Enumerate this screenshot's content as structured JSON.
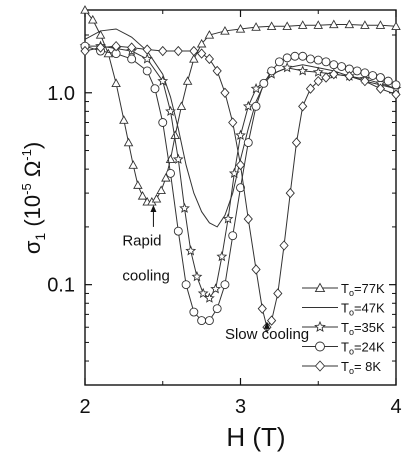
{
  "chart_data": {
    "type": "line",
    "xlabel": "H (T)",
    "ylabel": "σ1 (10-5 Ω-1)",
    "ylabel_parts": {
      "main": "σ",
      "sub": "1",
      "open": " (10",
      "sup1": "-5",
      "mid": " Ω",
      "sup2": "-1",
      "close": ")"
    },
    "xlim": [
      2,
      4
    ],
    "ylim": [
      0.03,
      2.7
    ],
    "yscale": "log",
    "x_ticks": [
      2,
      3,
      4
    ],
    "x_tick_labels": [
      "2",
      "3",
      "4"
    ],
    "y_ticks": [
      0.1,
      1.0
    ],
    "y_tick_labels": [
      "0.1",
      "1.0"
    ],
    "grid": false,
    "legend_position": "bottom-right",
    "series": [
      {
        "name": "To=77K",
        "label_parts": {
          "main": "T",
          "sub": "o",
          "rest": "=77K"
        },
        "marker": "triangle",
        "x": [
          2.0,
          2.05,
          2.1,
          2.15,
          2.2,
          2.25,
          2.28,
          2.31,
          2.34,
          2.37,
          2.4,
          2.43,
          2.46,
          2.49,
          2.52,
          2.55,
          2.58,
          2.62,
          2.66,
          2.7,
          2.75,
          2.8,
          2.9,
          3.0,
          3.1,
          3.2,
          3.3,
          3.4,
          3.5,
          3.6,
          3.7,
          3.8,
          3.9,
          4.0
        ],
        "y": [
          2.7,
          2.4,
          2.0,
          1.6,
          1.12,
          0.72,
          0.55,
          0.42,
          0.33,
          0.29,
          0.27,
          0.27,
          0.28,
          0.31,
          0.36,
          0.45,
          0.6,
          0.85,
          1.15,
          1.5,
          1.8,
          2.0,
          2.1,
          2.15,
          2.2,
          2.22,
          2.22,
          2.25,
          2.25,
          2.27,
          2.27,
          2.25,
          2.25,
          2.22
        ]
      },
      {
        "name": "To=47K",
        "label_parts": {
          "main": "T",
          "sub": "o",
          "rest": "=47K"
        },
        "marker": "none",
        "x": [
          2.0,
          2.1,
          2.2,
          2.3,
          2.4,
          2.5,
          2.55,
          2.6,
          2.65,
          2.7,
          2.75,
          2.8,
          2.85,
          2.9,
          2.95,
          3.0,
          3.05,
          3.1,
          3.15,
          3.2,
          3.3,
          3.4,
          3.5,
          3.6,
          3.7,
          3.8,
          3.9,
          4.0
        ],
        "y": [
          1.9,
          2.1,
          2.15,
          1.95,
          1.65,
          1.25,
          0.95,
          0.65,
          0.42,
          0.3,
          0.24,
          0.21,
          0.2,
          0.23,
          0.3,
          0.45,
          0.65,
          0.9,
          1.1,
          1.25,
          1.35,
          1.4,
          1.35,
          1.3,
          1.22,
          1.15,
          1.1,
          1.05
        ]
      },
      {
        "name": "To=35K",
        "label_parts": {
          "main": "T",
          "sub": "o",
          "rest": "=35K"
        },
        "marker": "star",
        "x": [
          2.0,
          2.1,
          2.2,
          2.3,
          2.4,
          2.5,
          2.55,
          2.6,
          2.64,
          2.68,
          2.72,
          2.76,
          2.8,
          2.84,
          2.88,
          2.92,
          2.96,
          3.0,
          3.05,
          3.1,
          3.2,
          3.3,
          3.4,
          3.5,
          3.6,
          3.7,
          3.8,
          3.9,
          4.0
        ],
        "y": [
          1.75,
          1.75,
          1.7,
          1.65,
          1.5,
          1.15,
          0.8,
          0.45,
          0.25,
          0.15,
          0.11,
          0.09,
          0.085,
          0.095,
          0.14,
          0.22,
          0.38,
          0.6,
          0.85,
          1.05,
          1.25,
          1.35,
          1.3,
          1.28,
          1.25,
          1.22,
          1.18,
          1.12,
          1.05
        ]
      },
      {
        "name": "To=24K",
        "label_parts": {
          "main": "T",
          "sub": "o",
          "rest": "=24K"
        },
        "marker": "circle",
        "x": [
          2.0,
          2.1,
          2.2,
          2.3,
          2.4,
          2.45,
          2.5,
          2.55,
          2.6,
          2.65,
          2.7,
          2.75,
          2.8,
          2.85,
          2.9,
          2.95,
          3.0,
          3.05,
          3.1,
          3.15,
          3.2,
          3.25,
          3.3,
          3.35,
          3.4,
          3.45,
          3.5,
          3.55,
          3.6,
          3.65,
          3.7,
          3.75,
          3.8,
          3.85,
          3.9,
          3.95,
          4.0
        ],
        "y": [
          1.75,
          1.65,
          1.6,
          1.5,
          1.3,
          1.05,
          0.7,
          0.38,
          0.19,
          0.1,
          0.072,
          0.065,
          0.065,
          0.075,
          0.1,
          0.18,
          0.32,
          0.55,
          0.85,
          1.12,
          1.3,
          1.45,
          1.52,
          1.55,
          1.55,
          1.5,
          1.48,
          1.45,
          1.4,
          1.37,
          1.33,
          1.3,
          1.27,
          1.23,
          1.2,
          1.15,
          1.1
        ]
      },
      {
        "name": "To= 8K",
        "label_parts": {
          "main": "T",
          "sub": "o",
          "rest": "= 8K"
        },
        "marker": "diamond",
        "x": [
          2.0,
          2.1,
          2.2,
          2.3,
          2.4,
          2.5,
          2.6,
          2.7,
          2.75,
          2.8,
          2.85,
          2.9,
          2.95,
          3.0,
          3.05,
          3.1,
          3.14,
          3.17,
          3.2,
          3.24,
          3.28,
          3.32,
          3.36,
          3.4,
          3.45,
          3.5,
          3.55,
          3.6,
          3.7,
          3.8,
          3.9,
          4.0
        ],
        "y": [
          1.65,
          1.72,
          1.75,
          1.72,
          1.68,
          1.65,
          1.65,
          1.65,
          1.6,
          1.5,
          1.3,
          1.0,
          0.7,
          0.42,
          0.22,
          0.12,
          0.075,
          0.06,
          0.065,
          0.09,
          0.16,
          0.3,
          0.55,
          0.85,
          1.05,
          1.15,
          1.2,
          1.25,
          1.22,
          1.15,
          1.05,
          0.98
        ]
      }
    ],
    "annotations": [
      {
        "text": "Rapid",
        "x": 2.24,
        "y": 0.16
      },
      {
        "text": "cooling",
        "x": 2.24,
        "y": 0.105
      },
      {
        "text": "Slow cooling",
        "x": 2.9,
        "y": 0.052
      }
    ],
    "arrows": [
      {
        "x": 2.44,
        "y_from": 0.2,
        "y_to": 0.26
      },
      {
        "x": 3.17,
        "y_from": 0.057,
        "y_to": 0.064
      }
    ]
  }
}
